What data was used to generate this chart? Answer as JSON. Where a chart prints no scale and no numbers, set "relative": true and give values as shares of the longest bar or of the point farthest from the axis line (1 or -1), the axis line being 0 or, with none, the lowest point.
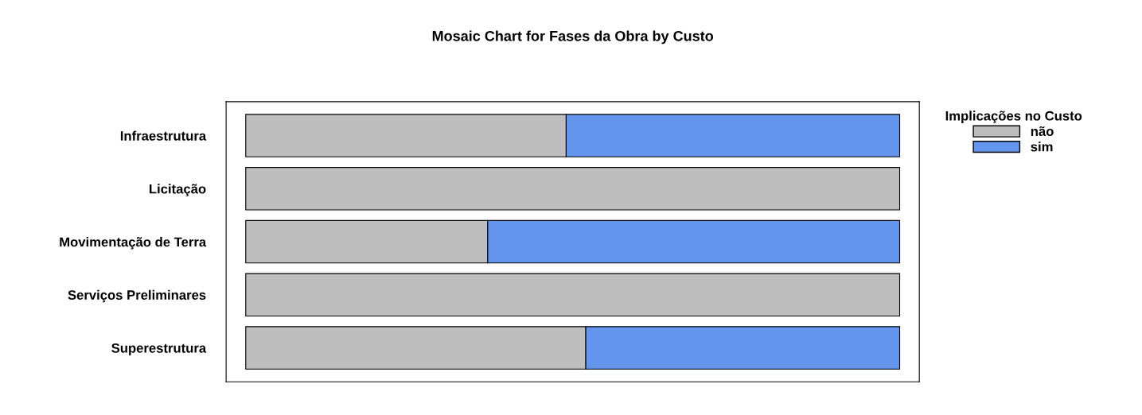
{
  "chart_data": {
    "type": "bar",
    "title": "Mosaic Chart for Fases da Obra by Custo",
    "orientation": "horizontal",
    "stacked": true,
    "relative": true,
    "categories": [
      "Infraestrutura",
      "Licitação",
      "Movimentação de Terra",
      "Serviços Preliminares",
      "Superestrutura"
    ],
    "series": [
      {
        "name": "não",
        "color": "#bebebe",
        "values": [
          0.49,
          1.0,
          0.37,
          1.0,
          0.52
        ]
      },
      {
        "name": "sim",
        "color": "#6495ed",
        "values": [
          0.51,
          null,
          0.63,
          null,
          0.48
        ]
      }
    ],
    "legend": "top right",
    "legend_title": "Implicações no Custo",
    "grid": false
  }
}
